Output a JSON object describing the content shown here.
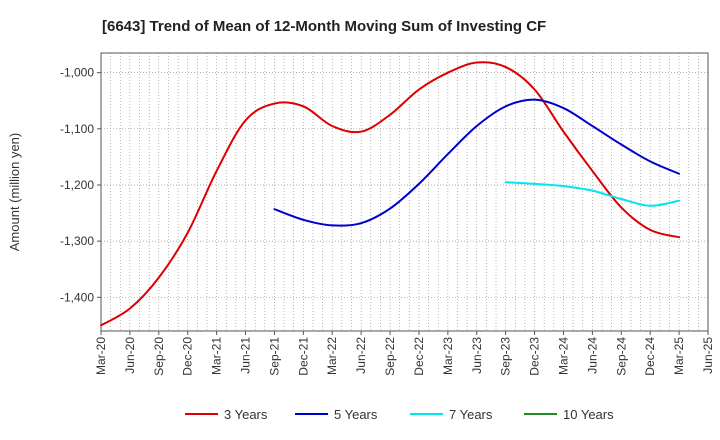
{
  "chart_data": {
    "type": "line",
    "title": "[6643]  Trend of Mean of 12-Month Moving Sum of Investing CF",
    "xlabel": "",
    "ylabel": "Amount (million yen)",
    "ylim": [
      -1460,
      -965
    ],
    "yticks": [
      -1400,
      -1300,
      -1200,
      -1100,
      -1000
    ],
    "ytick_labels": [
      "-1,400",
      "-1,300",
      "-1,200",
      "-1,100",
      "-1,000"
    ],
    "x_start": "Mar-20",
    "x_end": "Jun-25",
    "xtick_labels": [
      "Mar-20",
      "Jun-20",
      "Sep-20",
      "Dec-20",
      "Mar-21",
      "Jun-21",
      "Sep-21",
      "Dec-21",
      "Mar-22",
      "Jun-22",
      "Sep-22",
      "Dec-22",
      "Mar-23",
      "Jun-23",
      "Sep-23",
      "Dec-23",
      "Mar-24",
      "Jun-24",
      "Sep-24",
      "Dec-24",
      "Mar-25",
      "Jun-25"
    ],
    "grid": true,
    "legend_position": "bottom",
    "series": [
      {
        "name": "3 Years",
        "color": "#dd0000",
        "x": [
          "Mar-20",
          "Jun-20",
          "Sep-20",
          "Dec-20",
          "Mar-21",
          "Jun-21",
          "Sep-21",
          "Dec-21",
          "Mar-22",
          "Jun-22",
          "Sep-22",
          "Dec-22",
          "Mar-23",
          "Jun-23",
          "Sep-23",
          "Dec-23",
          "Mar-24",
          "Jun-24",
          "Sep-24",
          "Dec-24",
          "Mar-25"
        ],
        "values": [
          -1450,
          -1420,
          -1365,
          -1285,
          -1175,
          -1085,
          -1055,
          -1060,
          -1095,
          -1105,
          -1075,
          -1030,
          -1000,
          -982,
          -990,
          -1030,
          -1105,
          -1175,
          -1240,
          -1280,
          -1293
        ]
      },
      {
        "name": "5 Years",
        "color": "#0000cc",
        "x": [
          "Sep-21",
          "Dec-21",
          "Mar-22",
          "Jun-22",
          "Sep-22",
          "Dec-22",
          "Mar-23",
          "Jun-23",
          "Sep-23",
          "Dec-23",
          "Mar-24",
          "Jun-24",
          "Sep-24",
          "Dec-24",
          "Mar-25"
        ],
        "values": [
          -1243,
          -1262,
          -1272,
          -1268,
          -1242,
          -1198,
          -1145,
          -1095,
          -1060,
          -1048,
          -1063,
          -1095,
          -1128,
          -1158,
          -1180
        ]
      },
      {
        "name": "7 Years",
        "color": "#00e5ee",
        "x": [
          "Sep-23",
          "Dec-23",
          "Mar-24",
          "Jun-24",
          "Sep-24",
          "Dec-24",
          "Mar-25"
        ],
        "values": [
          -1195,
          -1198,
          -1202,
          -1210,
          -1225,
          -1237,
          -1228
        ]
      },
      {
        "name": "10 Years",
        "color": "#228b22",
        "x": [],
        "values": []
      }
    ]
  }
}
